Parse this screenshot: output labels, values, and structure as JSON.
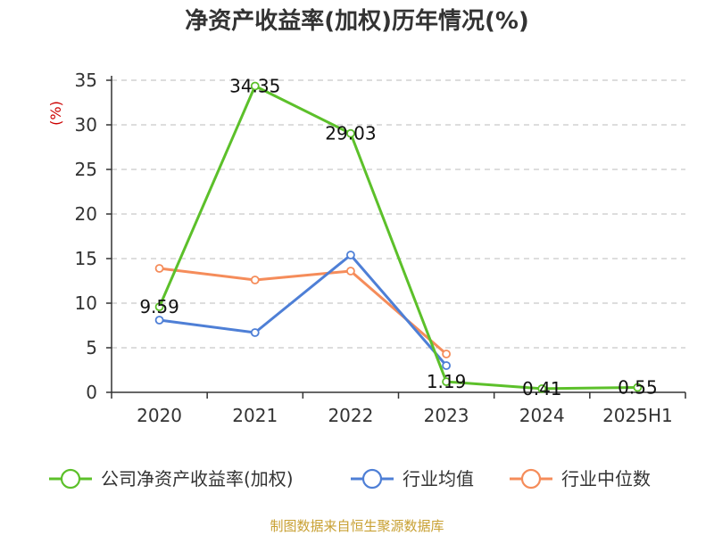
{
  "chart_data": {
    "type": "line",
    "title": "净资产收益率(加权)历年情况(%)",
    "ylabel": "(%)",
    "categories": [
      "2020",
      "2021",
      "2022",
      "2023",
      "2024",
      "2025H1"
    ],
    "ylim": [
      0,
      35
    ],
    "yticks": [
      0,
      5,
      10,
      15,
      20,
      25,
      30,
      35
    ],
    "grid": true,
    "legend_position": "bottom",
    "series": [
      {
        "name": "公司净资产收益率(加权)",
        "color": "#5cc02a",
        "values": [
          9.59,
          34.35,
          29.03,
          1.19,
          0.41,
          0.55
        ],
        "labels": [
          "9.59",
          "34.35",
          "29.03",
          "1.19",
          "0.41",
          "0.55"
        ]
      },
      {
        "name": "行业均值",
        "color": "#4e7fd6",
        "values": [
          8.1,
          6.7,
          15.4,
          3.0,
          null,
          null
        ]
      },
      {
        "name": "行业中位数",
        "color": "#f58c5a",
        "values": [
          13.9,
          12.6,
          13.6,
          4.3,
          null,
          null
        ]
      }
    ],
    "source": "制图数据来自恒生聚源数据库"
  }
}
